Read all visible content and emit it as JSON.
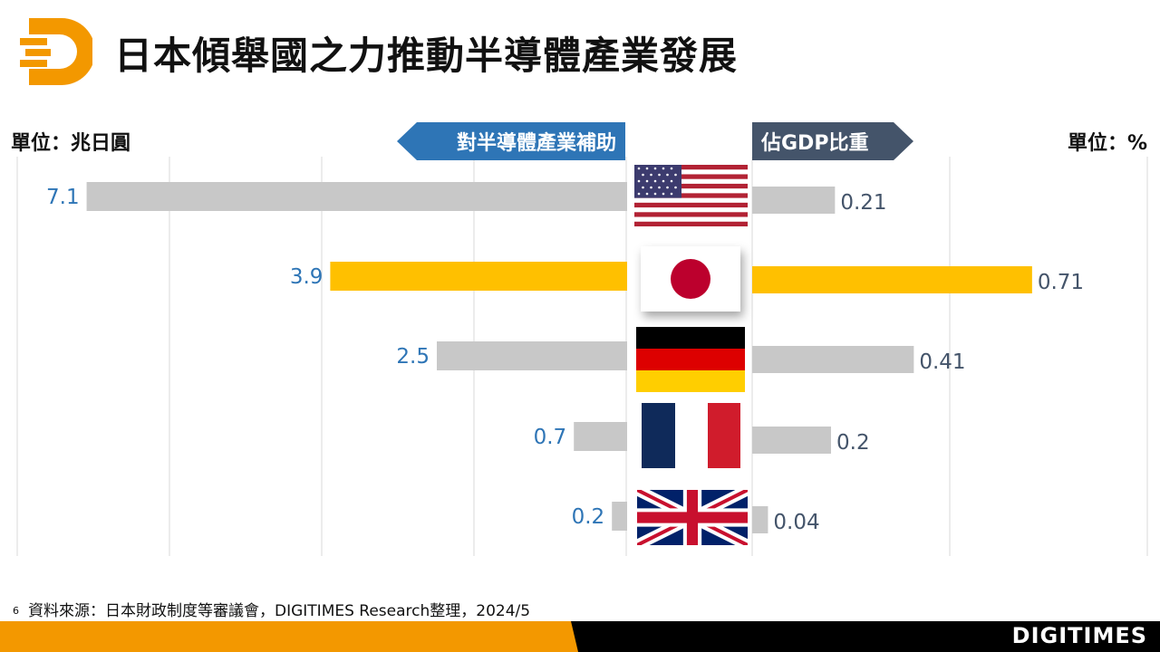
{
  "title": "日本傾舉國之力推動半導體產業發展",
  "left_unit": "單位：兆日圓",
  "right_unit": "單位：%",
  "left_banner": "對半導體產業補助",
  "right_banner": "佔GDP比重",
  "footer": {
    "page_number": "6",
    "source": "資料來源：日本財政制度等審議會，DIGITIMES Research整理，2024/5"
  },
  "brand": "DIGITIMES",
  "colors": {
    "default_bar": "#c8c8c8",
    "highlight_bar": "#ffc000",
    "left_label": "#2e75b6",
    "right_label": "#44546a",
    "banner_left": "#2e75b6",
    "banner_right": "#44546a",
    "orange": "#f39800"
  },
  "chart_data": {
    "type": "bar",
    "categories": [
      "United States",
      "Japan",
      "Germany",
      "France",
      "United Kingdom"
    ],
    "category_icons": [
      "us-flag",
      "japan-flag",
      "germany-flag",
      "france-flag",
      "uk-flag"
    ],
    "highlight_index": 1,
    "series": [
      {
        "name": "對半導體產業補助",
        "unit": "兆日圓",
        "values": [
          7.1,
          3.9,
          2.5,
          0.7,
          0.2
        ],
        "labels": [
          "7.1",
          "3.9",
          "2.5",
          "0.7",
          "0.2"
        ]
      },
      {
        "name": "佔GDP比重",
        "unit": "%",
        "values": [
          0.21,
          0.71,
          0.41,
          0.2,
          0.04
        ],
        "labels": [
          "0.21",
          "0.71",
          "0.41",
          "0.2",
          "0.04"
        ]
      }
    ],
    "left_xlim": [
      0,
      8
    ],
    "right_xlim": [
      0,
      0.8
    ],
    "grid": true
  }
}
